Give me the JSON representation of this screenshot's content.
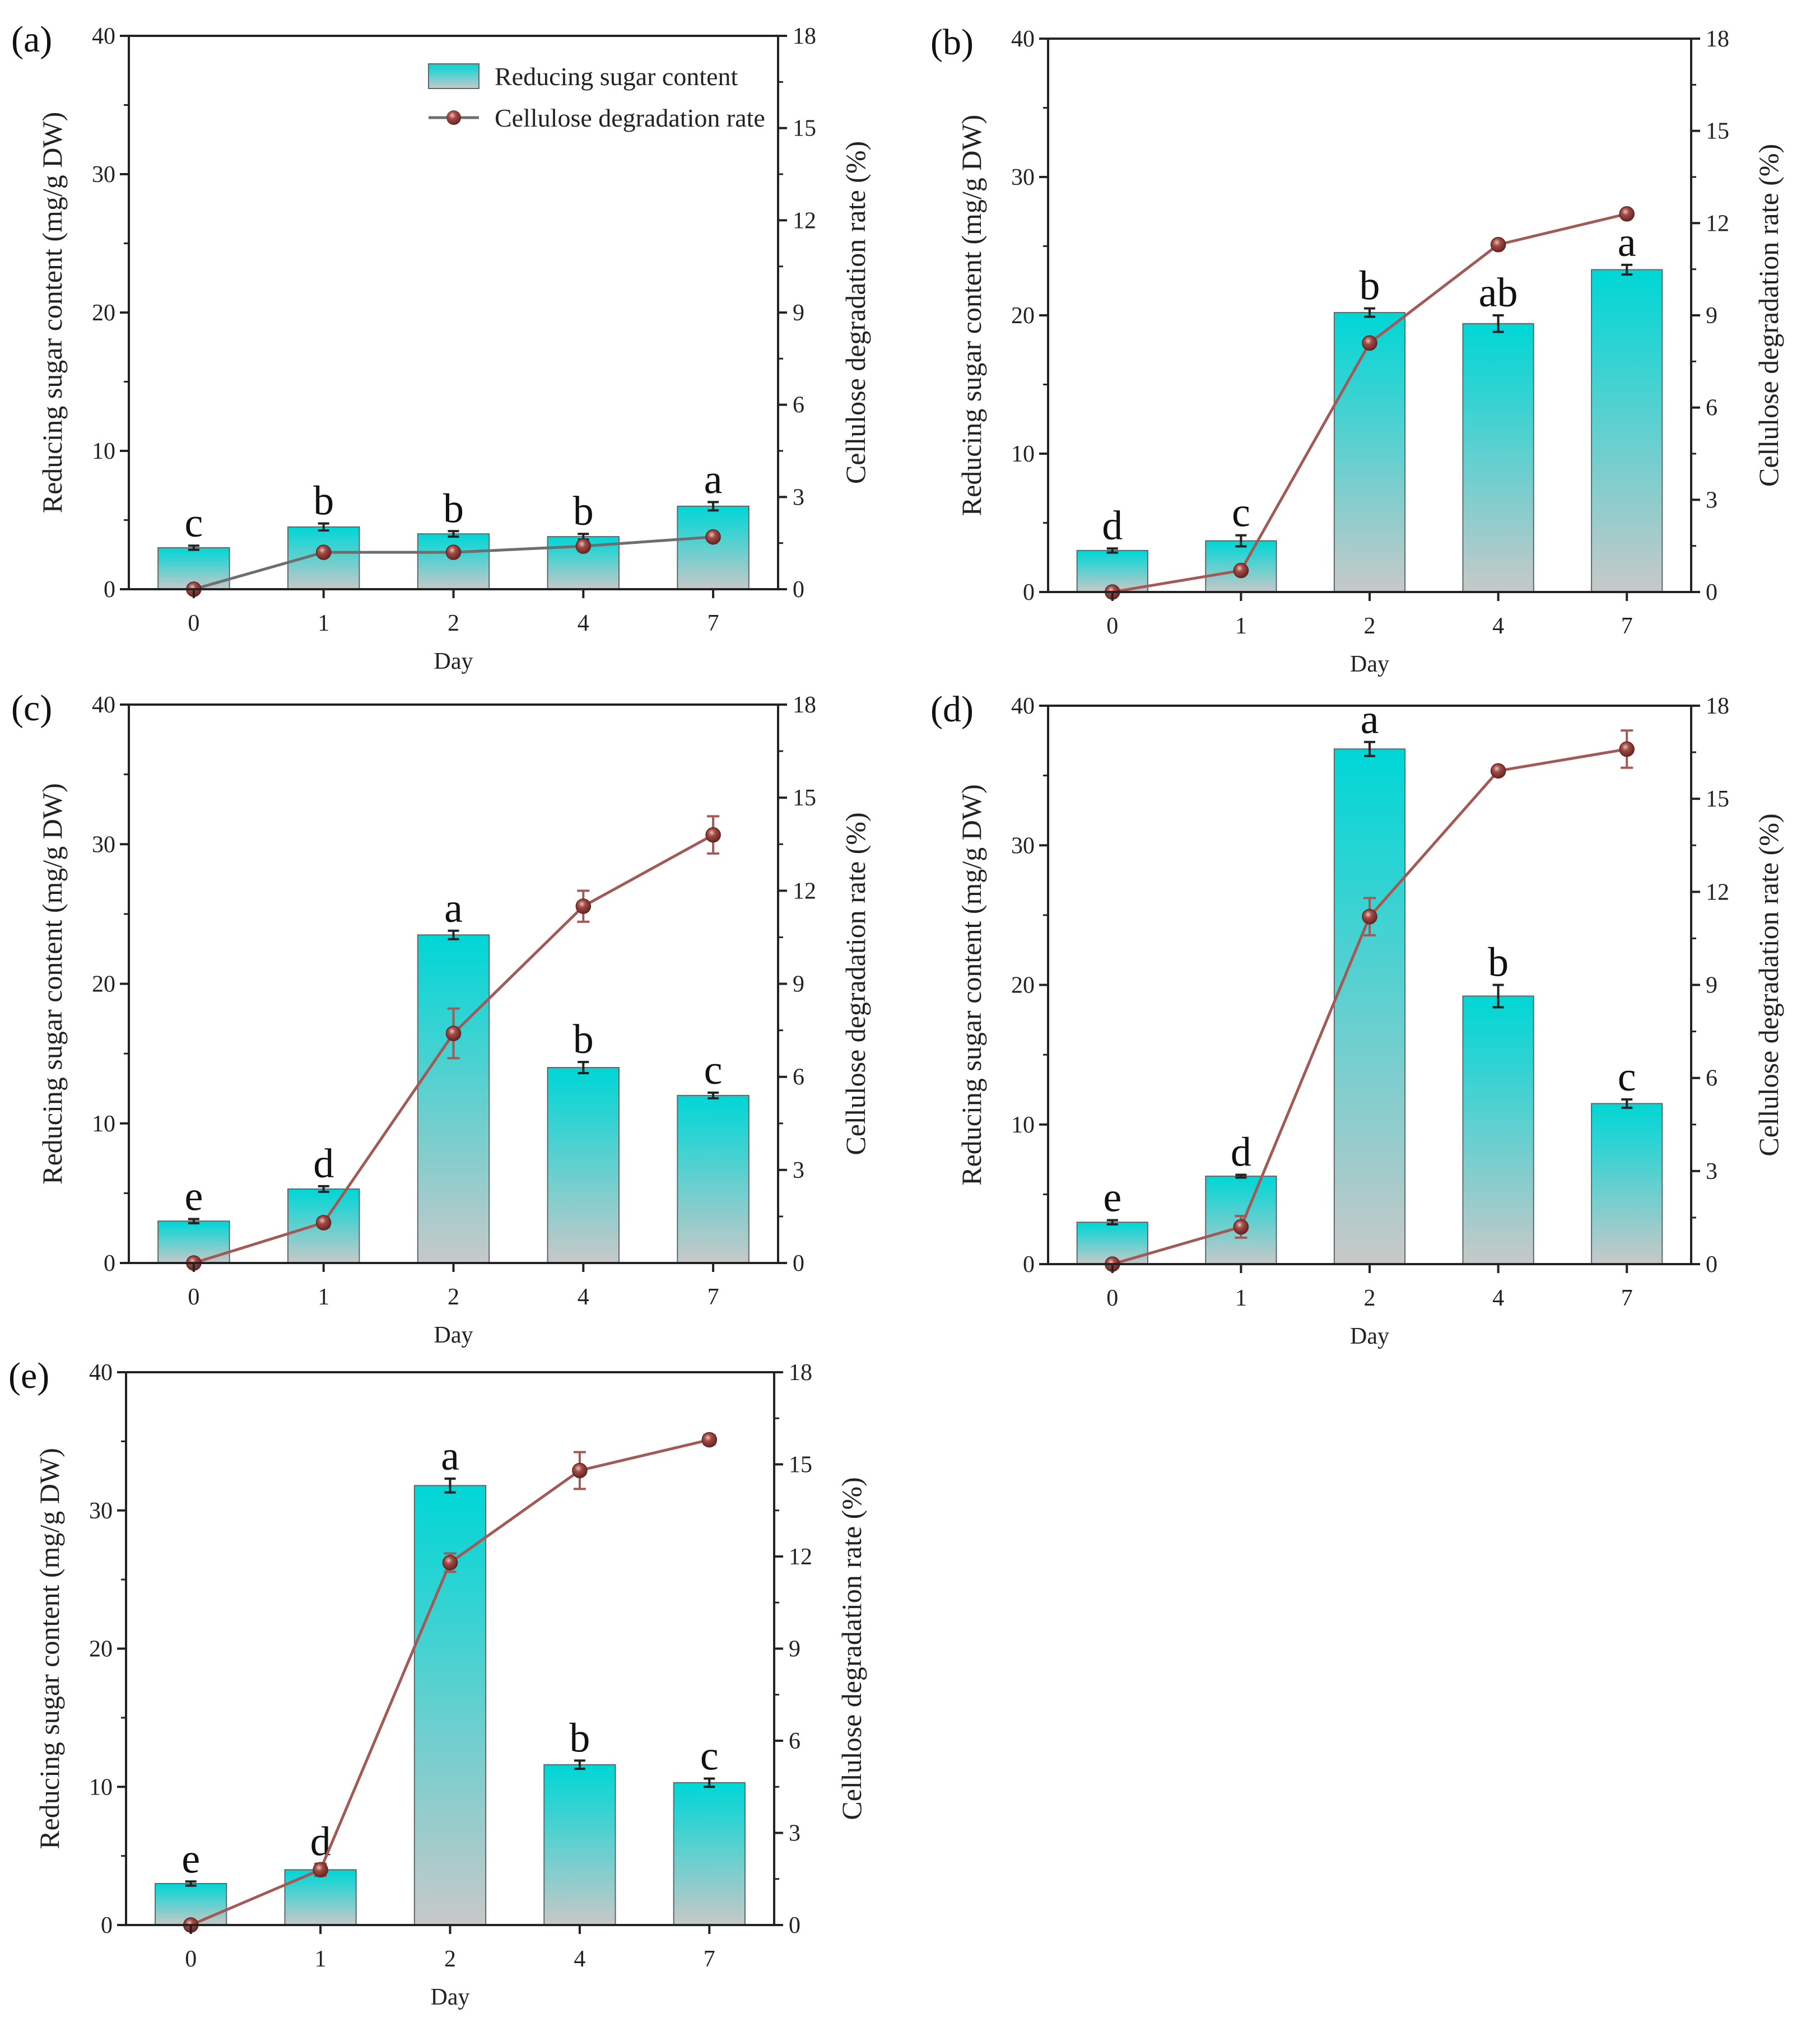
{
  "chart_data": [
    {
      "type": "bar+line",
      "panel_label": "(a)",
      "categories": [
        "0",
        "1",
        "2",
        "4",
        "7"
      ],
      "xlabel": "Day",
      "ylabel": "Reducing sugar content (mg/g DW)",
      "y2label": "Cellulose degradation rate (%)",
      "ylim": [
        0,
        40
      ],
      "yticks": [
        "0",
        "10",
        "20",
        "30",
        "40"
      ],
      "y2lim": [
        0,
        18
      ],
      "y2ticks": [
        "0",
        "3",
        "6",
        "9",
        "12",
        "15",
        "18"
      ],
      "bar_values": [
        3.0,
        4.5,
        4.0,
        3.8,
        6.0
      ],
      "bar_err": [
        0.15,
        0.25,
        0.2,
        0.2,
        0.3
      ],
      "letters": [
        "c",
        "b",
        "b",
        "b",
        "a"
      ],
      "line_values": [
        0,
        1.2,
        1.2,
        1.4,
        1.7
      ],
      "line_err": [
        0,
        0.1,
        0.1,
        0.1,
        0.1
      ],
      "line_color": "#6e6e6e",
      "legend": {
        "bar": "Reducing sugar content",
        "line": "Cellulose degradation rate"
      }
    },
    {
      "type": "bar+line",
      "panel_label": "(b)",
      "categories": [
        "0",
        "1",
        "2",
        "4",
        "7"
      ],
      "xlabel": "Day",
      "ylabel": "Reducing sugar content (mg/g DW)",
      "y2label": "Cellulose degradation rate (%)",
      "ylim": [
        0,
        40
      ],
      "yticks": [
        "0",
        "10",
        "20",
        "30",
        "40"
      ],
      "y2lim": [
        0,
        18
      ],
      "y2ticks": [
        "0",
        "3",
        "6",
        "9",
        "12",
        "15",
        "18"
      ],
      "bar_values": [
        3.0,
        3.7,
        20.2,
        19.4,
        23.3
      ],
      "bar_err": [
        0.15,
        0.4,
        0.3,
        0.6,
        0.35
      ],
      "letters": [
        "d",
        "c",
        "b",
        "ab",
        "a"
      ],
      "line_values": [
        0,
        0.7,
        8.1,
        11.3,
        12.3
      ],
      "line_err": [
        0,
        0.1,
        0.1,
        0.1,
        0.1
      ],
      "line_color": "#a35a56"
    },
    {
      "type": "bar+line",
      "panel_label": "(c)",
      "categories": [
        "0",
        "1",
        "2",
        "4",
        "7"
      ],
      "xlabel": "Day",
      "ylabel": "Reducing sugar content (mg/g DW)",
      "y2label": "Cellulose degradation rate (%)",
      "ylim": [
        0,
        40
      ],
      "yticks": [
        "0",
        "10",
        "20",
        "30",
        "40"
      ],
      "y2lim": [
        0,
        18
      ],
      "y2ticks": [
        "0",
        "3",
        "6",
        "9",
        "12",
        "15",
        "18"
      ],
      "bar_values": [
        3.0,
        5.3,
        23.5,
        14.0,
        12.0
      ],
      "bar_err": [
        0.15,
        0.2,
        0.3,
        0.4,
        0.2
      ],
      "letters": [
        "e",
        "d",
        "a",
        "b",
        "c"
      ],
      "line_values": [
        0,
        1.3,
        7.4,
        11.5,
        13.8
      ],
      "line_err": [
        0,
        0.15,
        0.8,
        0.5,
        0.6
      ],
      "line_color": "#a35a56"
    },
    {
      "type": "bar+line",
      "panel_label": "(d)",
      "categories": [
        "0",
        "1",
        "2",
        "4",
        "7"
      ],
      "xlabel": "Day",
      "ylabel": "Reducing sugar content (mg/g DW)",
      "y2label": "Cellulose degradation rate (%)",
      "ylim": [
        0,
        40
      ],
      "yticks": [
        "0",
        "10",
        "20",
        "30",
        "40"
      ],
      "y2lim": [
        0,
        18
      ],
      "y2ticks": [
        "0",
        "3",
        "6",
        "9",
        "12",
        "15",
        "18"
      ],
      "bar_values": [
        3.0,
        6.3,
        36.9,
        19.2,
        11.5
      ],
      "bar_err": [
        0.15,
        0.1,
        0.5,
        0.8,
        0.3
      ],
      "letters": [
        "e",
        "d",
        "a",
        "b",
        "c"
      ],
      "line_values": [
        0,
        1.2,
        11.2,
        15.9,
        16.6
      ],
      "line_err": [
        0,
        0.35,
        0.6,
        0.1,
        0.6
      ],
      "line_color": "#a35a56"
    },
    {
      "type": "bar+line",
      "panel_label": "(e)",
      "categories": [
        "0",
        "1",
        "2",
        "4",
        "7"
      ],
      "xlabel": "Day",
      "ylabel": "Reducing sugar content (mg/g DW)",
      "y2label": "Cellulose degradation rate (%)",
      "ylim": [
        0,
        40
      ],
      "yticks": [
        "0",
        "10",
        "20",
        "30",
        "40"
      ],
      "y2lim": [
        0,
        18
      ],
      "y2ticks": [
        "0",
        "3",
        "6",
        "9",
        "12",
        "15",
        "18"
      ],
      "bar_values": [
        3.0,
        4.0,
        31.8,
        11.6,
        10.3
      ],
      "bar_err": [
        0.15,
        0.4,
        0.5,
        0.3,
        0.3
      ],
      "letters": [
        "e",
        "d",
        "a",
        "b",
        "c"
      ],
      "line_values": [
        0,
        1.8,
        11.8,
        14.8,
        15.8
      ],
      "line_err": [
        0,
        0.2,
        0.3,
        0.6,
        0.15
      ],
      "line_color": "#a35a56"
    }
  ],
  "colors": {
    "bar_top": "#00d6d6",
    "bar_bottom": "#c8c8c8",
    "marker": "#8a3a36"
  }
}
